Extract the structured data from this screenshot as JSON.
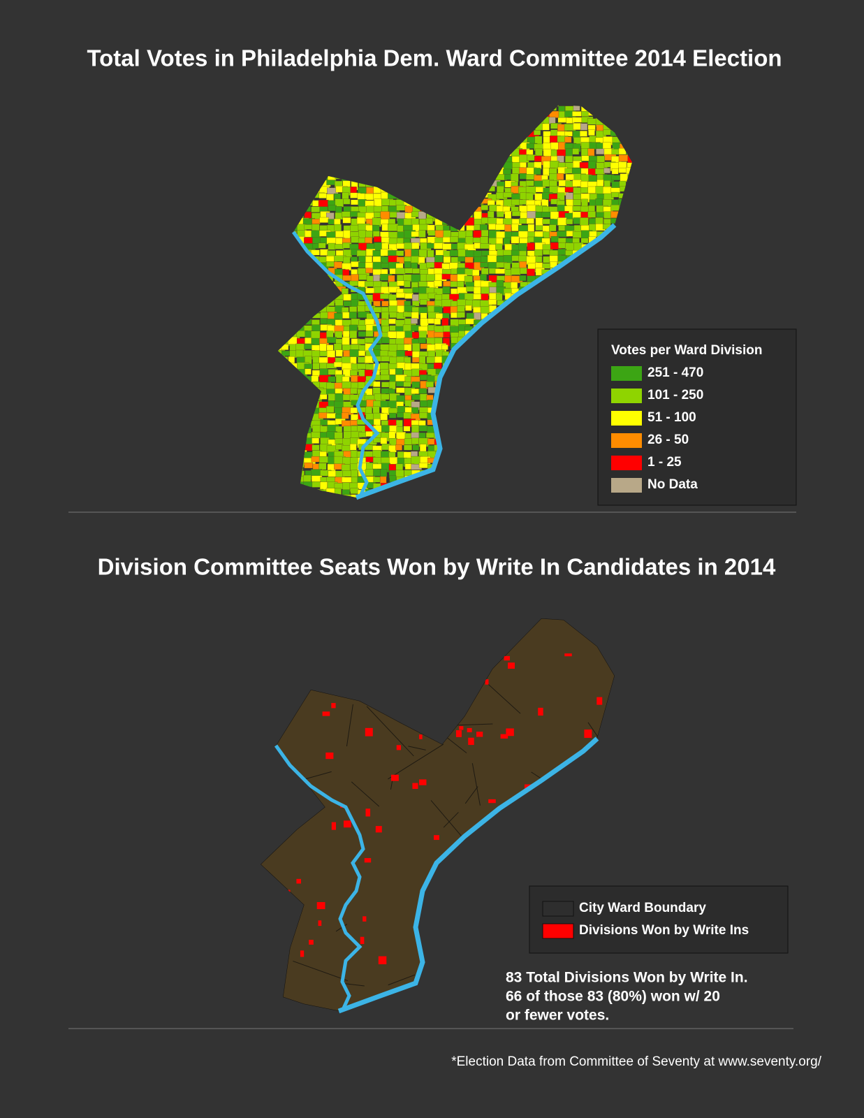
{
  "map1": {
    "title": "Total Votes in Philadelphia Dem. Ward Committee 2014 Election",
    "legend": {
      "title": "Votes per Ward Division",
      "items": [
        {
          "label": "251 - 470",
          "color": "#3ca514"
        },
        {
          "label": "101 - 250",
          "color": "#8fd400"
        },
        {
          "label": "51 - 100",
          "color": "#ffff00"
        },
        {
          "label": "26 - 50",
          "color": "#ff8c00"
        },
        {
          "label": "1 - 25",
          "color": "#ff0000"
        },
        {
          "label": "No Data",
          "color": "#b8a888"
        }
      ]
    }
  },
  "map2": {
    "title": "Division Committee Seats Won by Write In Candidates in 2014",
    "legend": {
      "items": [
        {
          "label": "City Ward Boundary",
          "color": "#2e2e2e"
        },
        {
          "label": "Divisions Won by Write Ins",
          "color": "#ff0000"
        }
      ]
    },
    "note": [
      "83 Total Divisions Won by Write In.",
      "66 of those 83 (80%) won w/ 20",
      "or fewer votes."
    ]
  },
  "source": "*Election Data from Committee of Seventy at www.seventy.org/"
}
